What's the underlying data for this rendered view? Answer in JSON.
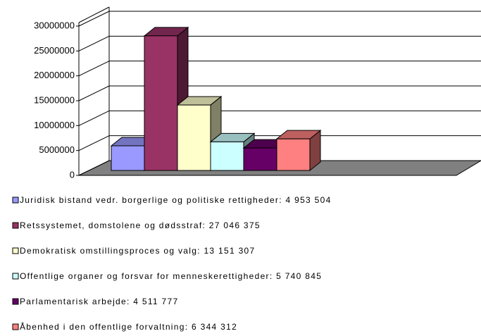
{
  "chart_data": {
    "type": "bar3d",
    "ylim": [
      0,
      30000000
    ],
    "yticks": [
      0,
      5000000,
      10000000,
      15000000,
      20000000,
      25000000,
      30000000
    ],
    "grid": true,
    "legend": "bottom",
    "series": [
      {
        "name": "Juridisk bistand vedr. borgerlige og politiske rettigheder: 4 953 504",
        "color": "#9999ff",
        "values": [
          4953504
        ]
      },
      {
        "name": "Retssystemet, domstolene og dødsstraf: 27 046 375",
        "color": "#993366",
        "values": [
          27046375
        ]
      },
      {
        "name": "Demokratisk omstillingsproces og valg: 13 151 307",
        "color": "#ffffcc",
        "values": [
          13151307
        ]
      },
      {
        "name": "Offentlige organer og forsvar for menneskerettigheder: 5 740 845",
        "color": "#ccffff",
        "values": [
          5740845
        ]
      },
      {
        "name": "Parlamentarisk arbejde: 4 511 777",
        "color": "#660066",
        "values": [
          4511777
        ]
      },
      {
        "name": "Åbenhed i den offentlige forvaltning: 6 344 312",
        "color": "#ff8080",
        "values": [
          6344312
        ]
      }
    ]
  }
}
